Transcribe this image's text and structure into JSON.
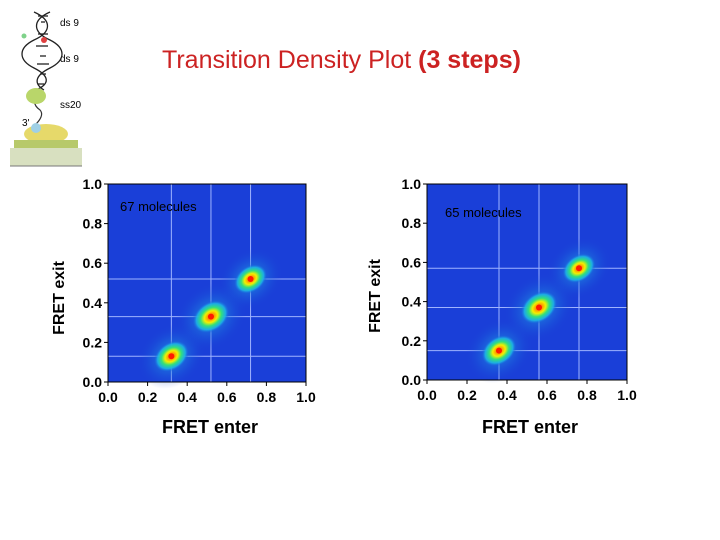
{
  "title": {
    "main": "Transition Density Plot",
    "sub": "(3 steps)"
  },
  "schematic": {
    "labels": [
      "ds 9",
      "ds 9",
      "ss20",
      "3'"
    ]
  },
  "colors": {
    "title": "#cc2222",
    "plot_bg": "#1a3fd8",
    "hot": "#ff2200"
  },
  "chart_data": [
    {
      "type": "heatmap",
      "title": "",
      "annotation": "67 molecules",
      "xlabel": "FRET enter",
      "ylabel": "FRET exit",
      "xlim": [
        0.0,
        1.0
      ],
      "ylim": [
        0.0,
        1.0
      ],
      "xticks": [
        "0.0",
        "0.2",
        "0.4",
        "0.6",
        "0.8",
        "1.0"
      ],
      "yticks": [
        "0.0",
        "0.2",
        "0.4",
        "0.6",
        "0.8",
        "1.0"
      ],
      "grid": true,
      "peaks": [
        {
          "x": 0.32,
          "y": 0.13,
          "intensity": 0.95
        },
        {
          "x": 0.52,
          "y": 0.33,
          "intensity": 1.0
        },
        {
          "x": 0.72,
          "y": 0.52,
          "intensity": 0.9
        }
      ]
    },
    {
      "type": "heatmap",
      "title": "",
      "annotation": "65 molecules",
      "xlabel": "FRET enter",
      "ylabel": "FRET exit",
      "xlim": [
        0.0,
        1.0
      ],
      "ylim": [
        0.0,
        1.0
      ],
      "xticks": [
        "0.0",
        "0.2",
        "0.4",
        "0.6",
        "0.8",
        "1.0"
      ],
      "yticks": [
        "0.0",
        "0.2",
        "0.4",
        "0.6",
        "0.8",
        "1.0"
      ],
      "grid": true,
      "peaks": [
        {
          "x": 0.36,
          "y": 0.15,
          "intensity": 0.95
        },
        {
          "x": 0.56,
          "y": 0.37,
          "intensity": 1.0
        },
        {
          "x": 0.76,
          "y": 0.57,
          "intensity": 0.9
        }
      ]
    }
  ]
}
